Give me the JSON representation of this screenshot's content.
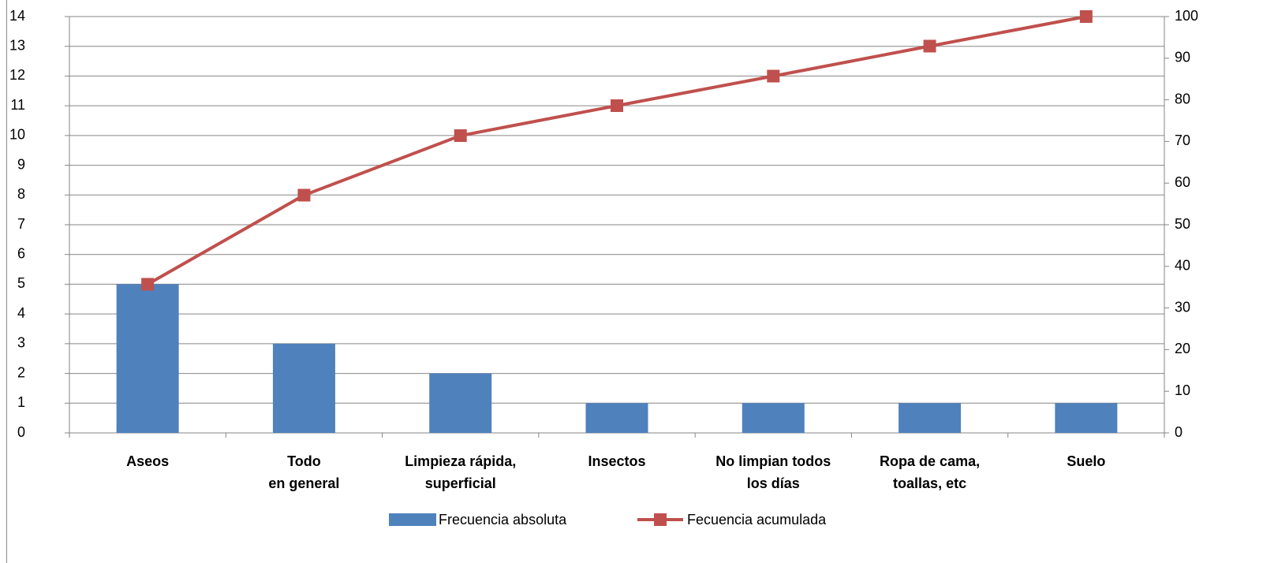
{
  "chart_data": {
    "type": "bar",
    "categories": [
      "Aseos",
      "Todo\nen general",
      "Limpieza rápida,\nsuperficial",
      "Insectos",
      "No limpian todos\nlos días",
      "Ropa de cama,\ntoallas, etc",
      "Suelo"
    ],
    "series": [
      {
        "name": "Frecuencia absoluta",
        "type": "bar",
        "color": "#4f81bd",
        "values": [
          5,
          3,
          2,
          1,
          1,
          1,
          1
        ]
      },
      {
        "name": "Fecuencia acumulada",
        "type": "line",
        "axis": "y2",
        "color": "#c0504d",
        "values": [
          35.7,
          57.1,
          71.4,
          78.6,
          85.7,
          92.9,
          100
        ]
      }
    ],
    "ylim": [
      0,
      14
    ],
    "yticks": [
      0,
      1,
      2,
      3,
      4,
      5,
      6,
      7,
      8,
      9,
      10,
      11,
      12,
      13,
      14
    ],
    "y2lim": [
      0,
      100
    ],
    "y2ticks": [
      0,
      10,
      20,
      30,
      40,
      50,
      60,
      70,
      80,
      90,
      100
    ],
    "grid": true,
    "legend": "bottom"
  }
}
